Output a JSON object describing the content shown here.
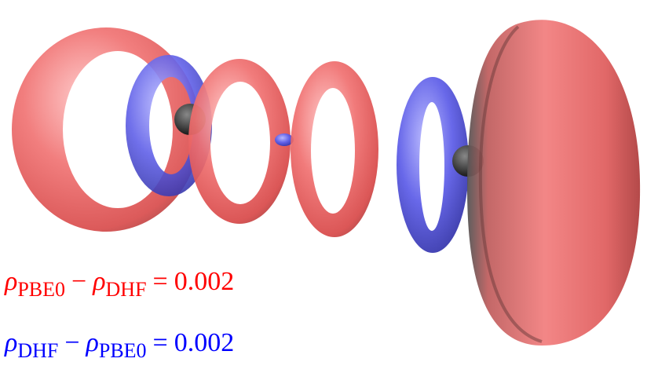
{
  "labels": [
    {
      "lhs": "ρ",
      "lhs_sub": "PBE0",
      "op": "−",
      "rhs": "ρ",
      "rhs_sub": "DHF",
      "eq": "=",
      "value": 0.002,
      "color": "#ff0000"
    },
    {
      "lhs": "ρ",
      "lhs_sub": "DHF",
      "op": "−",
      "rhs": "ρ",
      "rhs_sub": "PBE0",
      "eq": "=",
      "value": 0.002,
      "color": "#0000ff"
    }
  ]
}
